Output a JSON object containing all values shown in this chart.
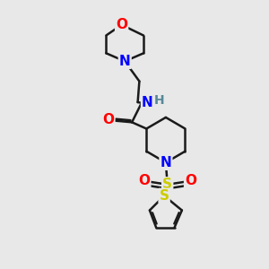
{
  "background_color": "#e8e8e8",
  "bond_color": "#1a1a1a",
  "atom_colors": {
    "O": "#ff0000",
    "N": "#0000ff",
    "S": "#cccc00",
    "H": "#558899",
    "C": "#1a1a1a"
  },
  "line_width": 1.8
}
